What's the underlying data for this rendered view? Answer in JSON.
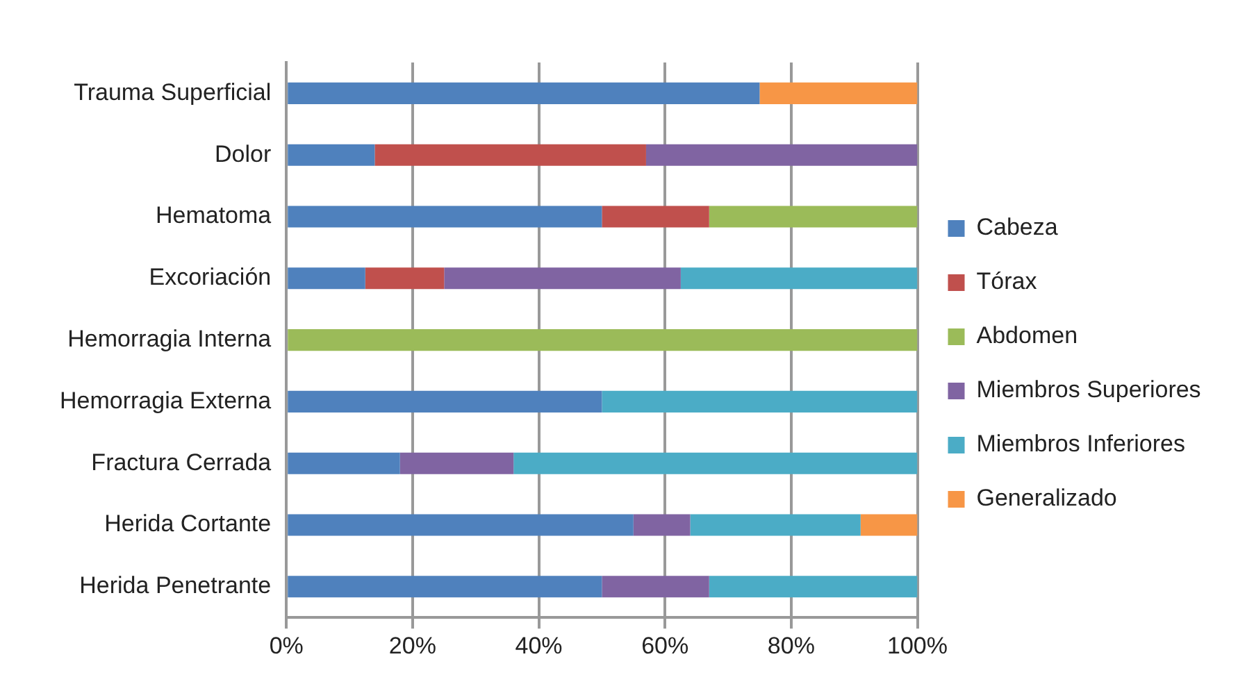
{
  "chart_data": {
    "type": "bar",
    "orientation": "horizontal",
    "stacked": true,
    "categories": [
      "Trauma Superficial",
      "Dolor",
      "Hematoma",
      "Excoriación",
      "Hemorragia Interna",
      "Hemorragia Externa",
      "Fractura Cerrada",
      "Herida Cortante",
      "Herida Penetrante"
    ],
    "series": [
      {
        "name": "Cabeza",
        "color": "#4f81bd",
        "values": [
          75,
          14,
          50,
          12.5,
          0,
          50,
          18,
          55,
          50
        ]
      },
      {
        "name": "Tórax",
        "color": "#c0504d",
        "values": [
          0,
          43,
          17,
          12.5,
          0,
          0,
          0,
          0,
          0
        ]
      },
      {
        "name": "Abdomen",
        "color": "#9bbb59",
        "values": [
          0,
          0,
          33,
          0,
          100,
          0,
          0,
          0,
          0
        ]
      },
      {
        "name": "Miembros Superiores",
        "color": "#8064a2",
        "values": [
          0,
          43,
          0,
          37.5,
          0,
          0,
          18,
          9,
          17
        ]
      },
      {
        "name": "Miembros Inferiores",
        "color": "#4bacc6",
        "values": [
          0,
          0,
          0,
          37.5,
          0,
          50,
          64,
          27,
          33
        ]
      },
      {
        "name": "Generalizado",
        "color": "#f79646",
        "values": [
          25,
          0,
          0,
          0,
          0,
          0,
          0,
          9,
          0
        ]
      }
    ],
    "xlim": [
      0,
      100
    ],
    "xticks": [
      {
        "value": 0,
        "label": "0%"
      },
      {
        "value": 20,
        "label": "20%"
      },
      {
        "value": 40,
        "label": "40%"
      },
      {
        "value": 60,
        "label": "60%"
      },
      {
        "value": 80,
        "label": "80%"
      },
      {
        "value": 100,
        "label": "100%"
      }
    ],
    "grid": "x",
    "legend": "right"
  }
}
